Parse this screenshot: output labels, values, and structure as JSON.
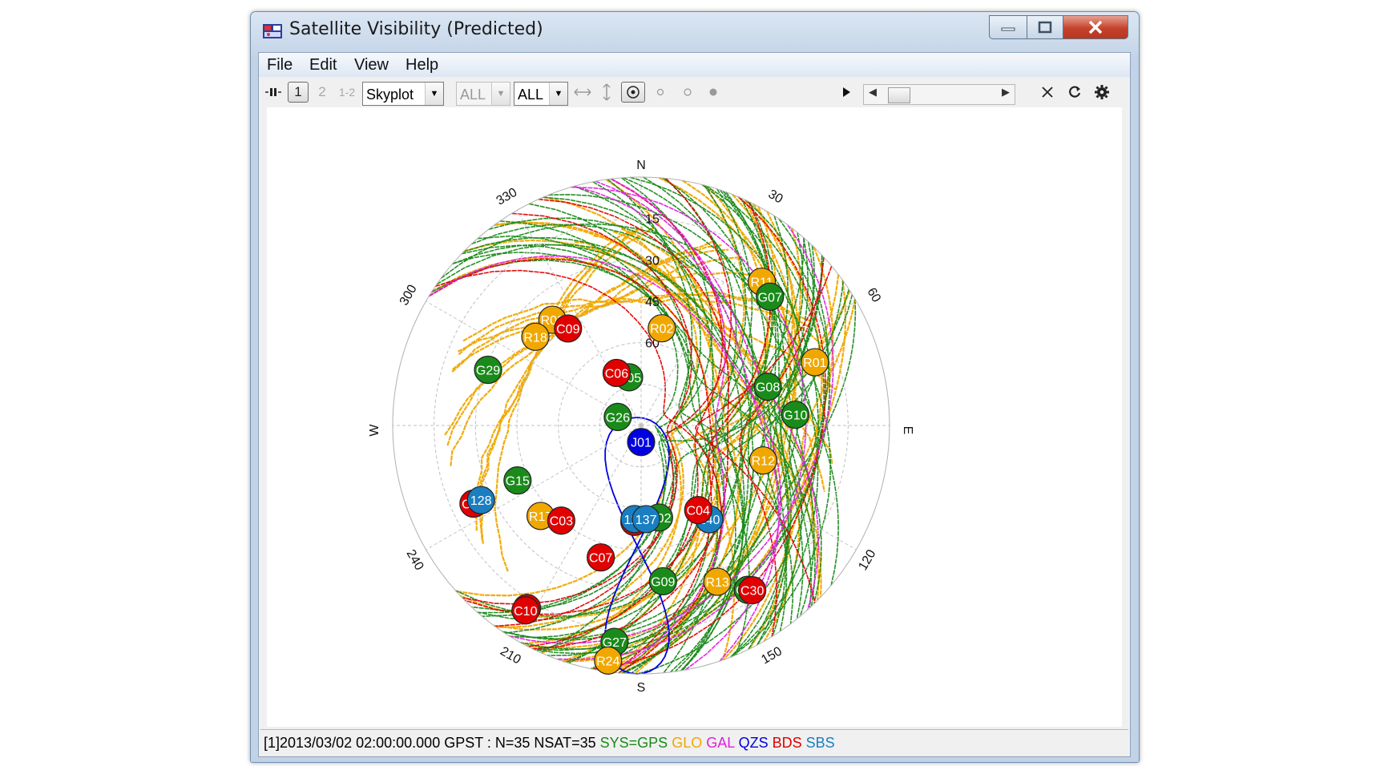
{
  "window": {
    "title": "Satellite Visibility (Predicted)"
  },
  "menu": [
    "File",
    "Edit",
    "View",
    "Help"
  ],
  "toolbar": {
    "page1": "1",
    "page2": "2",
    "page12": "1-2",
    "plot_type": "Skyplot",
    "system_filter": "ALL",
    "sat_filter": "ALL"
  },
  "skyplot": {
    "cardinals": {
      "n": "N",
      "e": "E",
      "s": "S",
      "w": "W"
    },
    "azimuth_labels": [
      "30",
      "60",
      "120",
      "150",
      "210",
      "240",
      "300",
      "330"
    ],
    "elevation_labels": [
      "15",
      "30",
      "45",
      "60"
    ]
  },
  "colors": {
    "GPS": "#1a8a1a",
    "GLO": "#f0a800",
    "GAL": "#e020e0",
    "QZS": "#0000e0",
    "BDS": "#e00000",
    "SBS": "#1a7ec0"
  },
  "satellites": [
    {
      "id": "R11",
      "sys": "GLO",
      "az": 40,
      "el": 22
    },
    {
      "id": "G07",
      "sys": "GPS",
      "az": 45,
      "el": 24
    },
    {
      "id": "R02",
      "sys": "GLO",
      "az": 12,
      "el": 54
    },
    {
      "id": "R03",
      "sys": "GLO",
      "az": 320,
      "el": 40
    },
    {
      "id": "C09",
      "sys": "BDS",
      "az": 323,
      "el": 46
    },
    {
      "id": "R18",
      "sys": "GLO",
      "az": 310,
      "el": 40
    },
    {
      "id": "G05",
      "sys": "GPS",
      "az": 346,
      "el": 72
    },
    {
      "id": "C06",
      "sys": "BDS",
      "az": 335,
      "el": 69
    },
    {
      "id": "R01",
      "sys": "GLO",
      "az": 70,
      "el": 23
    },
    {
      "id": "G29",
      "sys": "GPS",
      "az": 290,
      "el": 31
    },
    {
      "id": "G08",
      "sys": "GPS",
      "az": 73,
      "el": 42
    },
    {
      "id": "G10",
      "sys": "GPS",
      "az": 86,
      "el": 34
    },
    {
      "id": "G26",
      "sys": "GPS",
      "az": 290,
      "el": 81
    },
    {
      "id": "R12",
      "sys": "GLO",
      "az": 106,
      "el": 44
    },
    {
      "id": "J01",
      "sys": "QZS",
      "az": 180,
      "el": 84
    },
    {
      "id": "C01",
      "sys": "BDS",
      "az": 245,
      "el": 23
    },
    {
      "id": "128",
      "sys": "SBS",
      "az": 245,
      "el": 26
    },
    {
      "id": "G15",
      "sys": "GPS",
      "az": 246,
      "el": 41
    },
    {
      "id": "R17",
      "sys": "GLO",
      "az": 228,
      "el": 41
    },
    {
      "id": "C03",
      "sys": "BDS",
      "az": 220,
      "el": 45
    },
    {
      "id": "G02",
      "sys": "GPS",
      "az": 169,
      "el": 56
    },
    {
      "id": "C02",
      "sys": "BDS",
      "az": 184,
      "el": 55
    },
    {
      "id": "129",
      "sys": "SBS",
      "az": 184,
      "el": 56
    },
    {
      "id": "137",
      "sys": "SBS",
      "az": 177,
      "el": 56
    },
    {
      "id": "140",
      "sys": "SBS",
      "az": 144,
      "el": 48
    },
    {
      "id": "C04",
      "sys": "BDS",
      "az": 146,
      "el": 53
    },
    {
      "id": "C07",
      "sys": "BDS",
      "az": 197,
      "el": 40
    },
    {
      "id": "G09",
      "sys": "GPS",
      "az": 172,
      "el": 33
    },
    {
      "id": "R13",
      "sys": "GLO",
      "az": 154,
      "el": 27
    },
    {
      "id": "G21",
      "sys": "GPS",
      "az": 147,
      "el": 19
    },
    {
      "id": "C30",
      "sys": "BDS",
      "az": 146,
      "el": 18
    },
    {
      "id": "C08",
      "sys": "BDS",
      "az": 212,
      "el": 12
    },
    {
      "id": "C10",
      "sys": "BDS",
      "az": 212,
      "el": 11
    },
    {
      "id": "G27",
      "sys": "GPS",
      "az": 187,
      "el": 11
    },
    {
      "id": "R24",
      "sys": "GLO",
      "az": 188,
      "el": 4
    }
  ],
  "status": {
    "info": "[1]2013/03/02 02:00:00.000 GPST : N=35 NSAT=35",
    "sys_label": "SYS=GPS",
    "glo": "GLO",
    "gal": "GAL",
    "qzs": "QZS",
    "bds": "BDS",
    "sbs": "SBS"
  }
}
